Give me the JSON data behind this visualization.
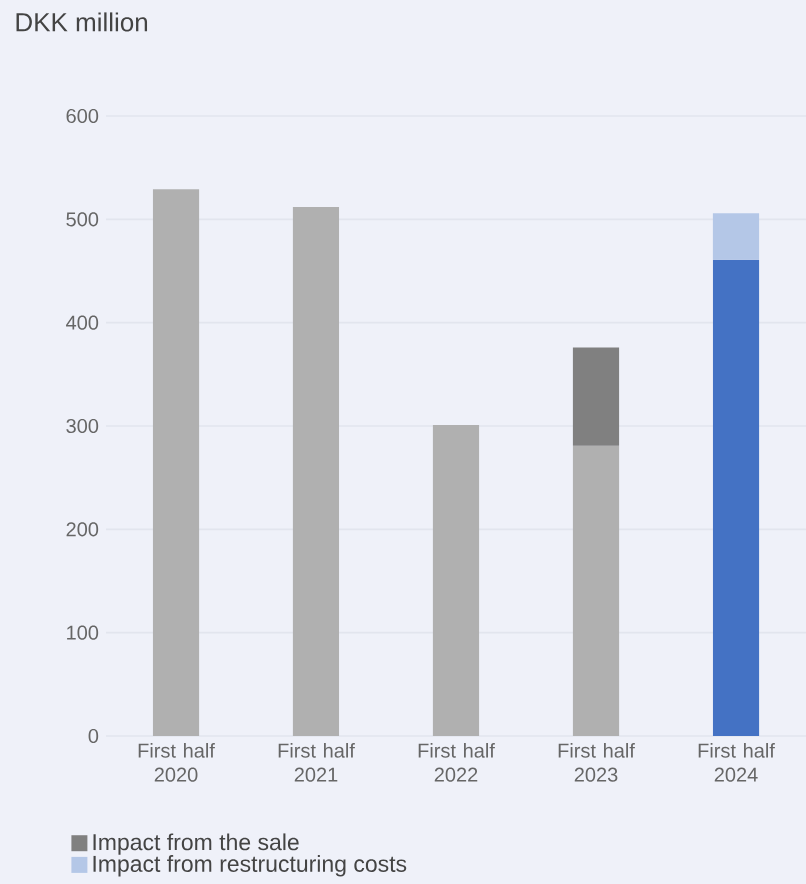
{
  "chart_data": {
    "type": "bar",
    "ylabel": "DKK million",
    "stacked": true,
    "categories": [
      "First half 2020",
      "First half 2021",
      "First half 2022",
      "First half 2023",
      "First half 2024"
    ],
    "series": [
      {
        "colors": [
          "#b0b0b0",
          "#b0b0b0",
          "#b0b0b0",
          "#b0b0b0",
          "#4472c4"
        ],
        "values": [
          529,
          512,
          301,
          281,
          461
        ]
      },
      {
        "name": "Impact from the sale",
        "color": "#808080",
        "values": [
          null,
          null,
          null,
          95,
          null
        ]
      },
      {
        "name": "Impact from restructuring costs",
        "color": "#b4c7e7",
        "values": [
          null,
          null,
          null,
          null,
          45
        ]
      }
    ],
    "ylim": [
      0,
      600
    ],
    "yticks": [
      0,
      100,
      200,
      300,
      400,
      500,
      600
    ],
    "grid": "y",
    "legend": "bottom"
  }
}
